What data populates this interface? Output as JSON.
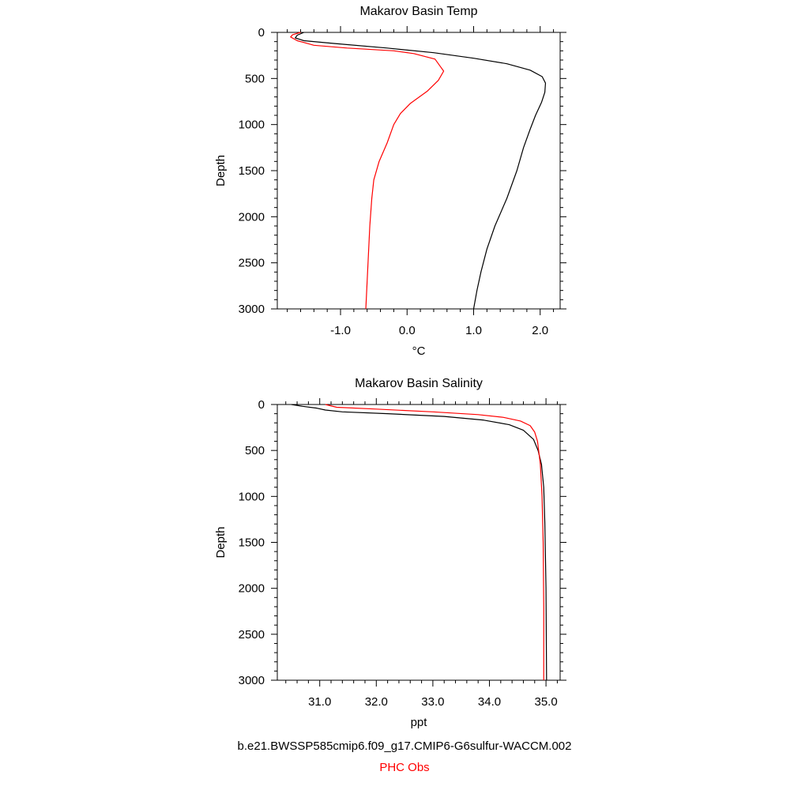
{
  "chart_data": [
    {
      "type": "line",
      "title": "Makarov Basin Temp",
      "xlabel": "°C",
      "ylabel": "Depth",
      "xlim": [
        -1.95,
        2.3
      ],
      "ylim": [
        3000,
        0
      ],
      "x_ticks": [
        -1.0,
        0.0,
        1.0,
        2.0
      ],
      "x_tick_labels": [
        "-1.0",
        "0.0",
        "1.0",
        "2.0"
      ],
      "y_ticks": [
        0,
        500,
        1000,
        1500,
        2000,
        2500,
        3000
      ],
      "y_tick_labels": [
        "0",
        "500",
        "1000",
        "1500",
        "2000",
        "2500",
        "3000"
      ],
      "grid": false,
      "series": [
        {
          "name": "b.e21.BWSSP585cmip6.f09_g17.CMIP6-G6sulfur-WACCM.002",
          "color": "#000000",
          "points": [
            [
              -1.55,
              0
            ],
            [
              -1.65,
              30
            ],
            [
              -1.68,
              60
            ],
            [
              -1.55,
              90
            ],
            [
              -1.1,
              120
            ],
            [
              -0.3,
              170
            ],
            [
              0.4,
              220
            ],
            [
              1.0,
              280
            ],
            [
              1.5,
              340
            ],
            [
              1.85,
              410
            ],
            [
              2.03,
              480
            ],
            [
              2.08,
              550
            ],
            [
              2.07,
              650
            ],
            [
              2.02,
              760
            ],
            [
              1.93,
              900
            ],
            [
              1.85,
              1050
            ],
            [
              1.75,
              1250
            ],
            [
              1.65,
              1500
            ],
            [
              1.5,
              1800
            ],
            [
              1.32,
              2100
            ],
            [
              1.2,
              2350
            ],
            [
              1.11,
              2600
            ],
            [
              1.05,
              2800
            ],
            [
              1.0,
              3000
            ]
          ]
        },
        {
          "name": "PHC Obs",
          "color": "#ff0000",
          "points": [
            [
              -1.6,
              0
            ],
            [
              -1.72,
              25
            ],
            [
              -1.75,
              50
            ],
            [
              -1.65,
              90
            ],
            [
              -1.4,
              140
            ],
            [
              -0.9,
              170
            ],
            [
              -0.2,
              200
            ],
            [
              0.1,
              230
            ],
            [
              0.42,
              290
            ],
            [
              0.5,
              370
            ],
            [
              0.55,
              420
            ],
            [
              0.47,
              520
            ],
            [
              0.3,
              640
            ],
            [
              0.05,
              770
            ],
            [
              -0.1,
              880
            ],
            [
              -0.2,
              1000
            ],
            [
              -0.3,
              1200
            ],
            [
              -0.42,
              1400
            ],
            [
              -0.5,
              1600
            ],
            [
              -0.53,
              1800
            ],
            [
              -0.56,
              2100
            ],
            [
              -0.58,
              2400
            ],
            [
              -0.6,
              2700
            ],
            [
              -0.62,
              3000
            ]
          ]
        }
      ]
    },
    {
      "type": "line",
      "title": "Makarov Basin Salinity",
      "xlabel": "ppt",
      "ylabel": "Depth",
      "xlim": [
        30.25,
        35.25
      ],
      "ylim": [
        3000,
        0
      ],
      "x_ticks": [
        31.0,
        32.0,
        33.0,
        34.0,
        35.0
      ],
      "x_tick_labels": [
        "31.0",
        "32.0",
        "33.0",
        "34.0",
        "35.0"
      ],
      "y_ticks": [
        0,
        500,
        1000,
        1500,
        2000,
        2500,
        3000
      ],
      "y_tick_labels": [
        "0",
        "500",
        "1000",
        "1500",
        "2000",
        "2500",
        "3000"
      ],
      "grid": false,
      "series": [
        {
          "name": "b.e21.BWSSP585cmip6.f09_g17.CMIP6-G6sulfur-WACCM.002",
          "color": "#000000",
          "points": [
            [
              30.5,
              0
            ],
            [
              30.7,
              20
            ],
            [
              30.95,
              40
            ],
            [
              31.1,
              60
            ],
            [
              31.4,
              80
            ],
            [
              32.2,
              100
            ],
            [
              33.2,
              130
            ],
            [
              33.9,
              170
            ],
            [
              34.35,
              220
            ],
            [
              34.6,
              280
            ],
            [
              34.78,
              380
            ],
            [
              34.86,
              500
            ],
            [
              34.92,
              650
            ],
            [
              34.96,
              900
            ],
            [
              34.98,
              1300
            ],
            [
              35.0,
              2000
            ],
            [
              35.01,
              3000
            ]
          ]
        },
        {
          "name": "PHC Obs",
          "color": "#ff0000",
          "points": [
            [
              31.1,
              0
            ],
            [
              31.3,
              30
            ],
            [
              32.0,
              50
            ],
            [
              33.0,
              80
            ],
            [
              33.8,
              110
            ],
            [
              34.25,
              140
            ],
            [
              34.55,
              180
            ],
            [
              34.72,
              230
            ],
            [
              34.8,
              300
            ],
            [
              34.85,
              400
            ],
            [
              34.87,
              500
            ],
            [
              34.9,
              650
            ],
            [
              34.93,
              1000
            ],
            [
              34.95,
              1500
            ],
            [
              34.96,
              2200
            ],
            [
              34.96,
              3000
            ]
          ]
        }
      ]
    }
  ],
  "legend": {
    "model_label": "b.e21.BWSSP585cmip6.f09_g17.CMIP6-G6sulfur-WACCM.002",
    "obs_label": "PHC Obs",
    "model_color": "#000000",
    "obs_color": "#ff0000"
  }
}
